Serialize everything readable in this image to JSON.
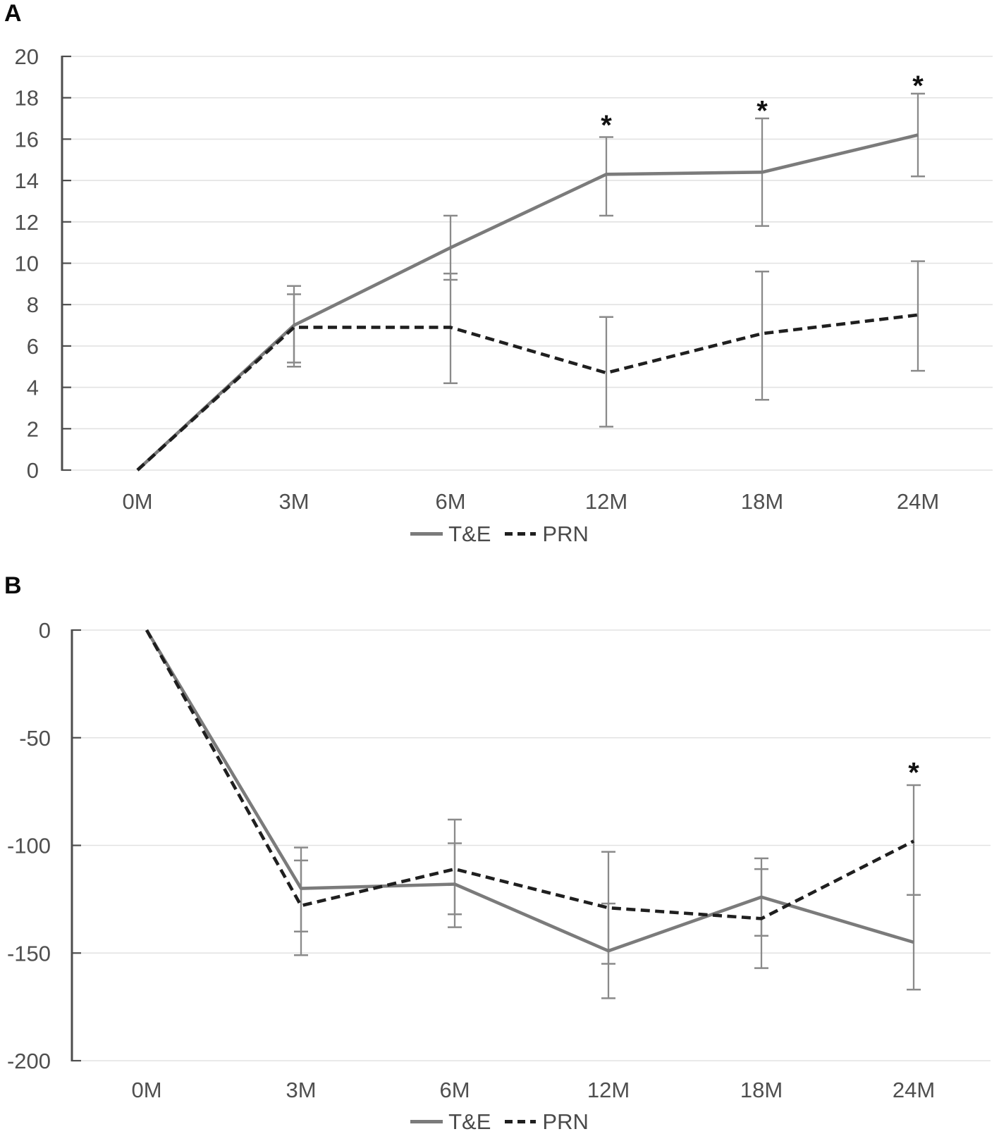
{
  "figure": {
    "panels": [
      {
        "label": "A"
      },
      {
        "label": "B"
      }
    ]
  },
  "colors": {
    "te_line": "#7b7b7b",
    "prn_line": "#1f1f1f",
    "error_bar": "#8a8a8a",
    "gridline": "#e2e2e2",
    "axis": "#4d4d4d",
    "tick_text": "#4f4f4f",
    "annotation": "#111111"
  },
  "chart_data": [
    {
      "type": "line",
      "panel": "A",
      "categories": [
        "0M",
        "3M",
        "6M",
        "12M",
        "18M",
        "24M"
      ],
      "ylim": [
        0,
        20
      ],
      "ytick_values": [
        0,
        2,
        4,
        6,
        8,
        10,
        12,
        14,
        16,
        18,
        20
      ],
      "grid": true,
      "legend_position": "bottom",
      "series": [
        {
          "name": "T&E",
          "style": "solid",
          "values": [
            0,
            7,
            10.75,
            14.3,
            14.4,
            16.2
          ],
          "err_lo": [
            null,
            5.2,
            9.2,
            12.3,
            11.8,
            14.2
          ],
          "err_hi": [
            null,
            8.9,
            12.3,
            16.1,
            17.0,
            18.2
          ]
        },
        {
          "name": "PRN",
          "style": "dashed",
          "values": [
            0,
            6.9,
            6.9,
            4.7,
            6.6,
            7.5
          ],
          "err_lo": [
            null,
            5.0,
            4.2,
            2.1,
            3.4,
            4.8
          ],
          "err_hi": [
            null,
            8.5,
            9.5,
            7.4,
            9.6,
            10.1
          ]
        }
      ],
      "annotations": [
        {
          "text": "*",
          "category": "12M",
          "y": 16.9
        },
        {
          "text": "*",
          "category": "18M",
          "y": 17.6
        },
        {
          "text": "*",
          "category": "24M",
          "y": 18.8
        }
      ]
    },
    {
      "type": "line",
      "panel": "B",
      "categories": [
        "0M",
        "3M",
        "6M",
        "12M",
        "18M",
        "24M"
      ],
      "ylim": [
        -200,
        0
      ],
      "ytick_values": [
        0,
        -50,
        -100,
        -150,
        -200
      ],
      "grid": true,
      "legend_position": "bottom",
      "series": [
        {
          "name": "T&E",
          "style": "solid",
          "values": [
            0,
            -120,
            -118,
            -149,
            -124,
            -145
          ],
          "err_lo": [
            null,
            -140,
            -138,
            -171,
            -142,
            -167
          ],
          "err_hi": [
            null,
            -101,
            -99,
            -127,
            -106,
            -123
          ]
        },
        {
          "name": "PRN",
          "style": "dashed",
          "values": [
            0,
            -128,
            -111,
            -129,
            -134,
            -98
          ],
          "err_lo": [
            null,
            -151,
            -132,
            -155,
            -157,
            -123
          ],
          "err_hi": [
            null,
            -107,
            -88,
            -103,
            -111,
            -72
          ]
        }
      ],
      "annotations": [
        {
          "text": "*",
          "category": "24M",
          "y": -64
        }
      ]
    }
  ]
}
